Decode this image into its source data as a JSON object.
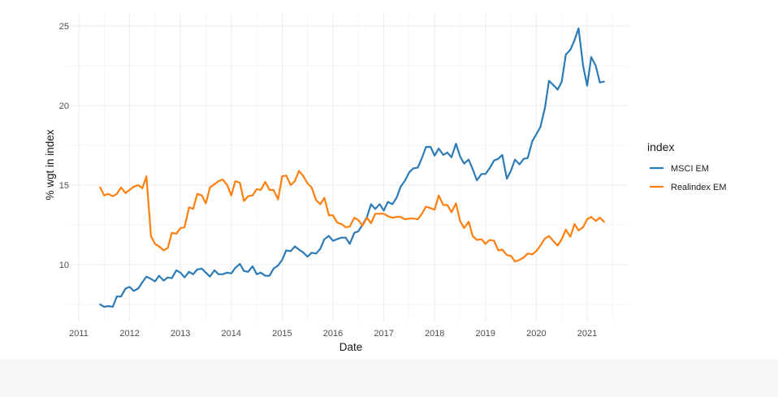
{
  "chart_data": {
    "type": "line",
    "title": "",
    "xlabel": "Date",
    "ylabel": "% wgt in index",
    "xlim": [
      2011.0,
      2021.5
    ],
    "ylim": [
      6.5,
      25.8
    ],
    "x_ticks": [
      2011,
      2012,
      2013,
      2014,
      2015,
      2016,
      2017,
      2018,
      2019,
      2020,
      2021
    ],
    "x_tick_labels": [
      "2011",
      "2012",
      "2013",
      "2014",
      "2015",
      "2016",
      "2017",
      "2018",
      "2019",
      "2020",
      "2021"
    ],
    "y_ticks": [
      10,
      15,
      20,
      25
    ],
    "y_tick_labels": [
      "10",
      "15",
      "20",
      "25"
    ],
    "grid": true,
    "legend": {
      "title": "index",
      "position": "right"
    },
    "series": [
      {
        "name": "MSCI EM",
        "color": "#2c7bb6",
        "points": [
          [
            2011.42,
            7.5
          ],
          [
            2011.5,
            7.35
          ],
          [
            2011.58,
            7.4
          ],
          [
            2011.67,
            7.35
          ],
          [
            2011.75,
            8.0
          ],
          [
            2011.83,
            8.0
          ],
          [
            2011.92,
            8.5
          ],
          [
            2012.0,
            8.6
          ],
          [
            2012.08,
            8.35
          ],
          [
            2012.17,
            8.5
          ],
          [
            2012.25,
            8.9
          ],
          [
            2012.33,
            9.25
          ],
          [
            2012.42,
            9.1
          ],
          [
            2012.5,
            8.95
          ],
          [
            2012.58,
            9.3
          ],
          [
            2012.67,
            9.0
          ],
          [
            2012.75,
            9.2
          ],
          [
            2012.83,
            9.15
          ],
          [
            2012.92,
            9.65
          ],
          [
            2013.0,
            9.5
          ],
          [
            2013.08,
            9.2
          ],
          [
            2013.17,
            9.55
          ],
          [
            2013.25,
            9.4
          ],
          [
            2013.33,
            9.7
          ],
          [
            2013.42,
            9.75
          ],
          [
            2013.5,
            9.5
          ],
          [
            2013.58,
            9.25
          ],
          [
            2013.67,
            9.65
          ],
          [
            2013.75,
            9.4
          ],
          [
            2013.83,
            9.4
          ],
          [
            2013.92,
            9.5
          ],
          [
            2014.0,
            9.45
          ],
          [
            2014.08,
            9.8
          ],
          [
            2014.17,
            10.05
          ],
          [
            2014.25,
            9.6
          ],
          [
            2014.33,
            9.55
          ],
          [
            2014.42,
            9.9
          ],
          [
            2014.5,
            9.4
          ],
          [
            2014.58,
            9.5
          ],
          [
            2014.67,
            9.3
          ],
          [
            2014.75,
            9.3
          ],
          [
            2014.83,
            9.75
          ],
          [
            2014.92,
            9.95
          ],
          [
            2015.0,
            10.3
          ],
          [
            2015.08,
            10.9
          ],
          [
            2015.17,
            10.85
          ],
          [
            2015.25,
            11.15
          ],
          [
            2015.33,
            10.95
          ],
          [
            2015.42,
            10.75
          ],
          [
            2015.5,
            10.5
          ],
          [
            2015.58,
            10.75
          ],
          [
            2015.67,
            10.7
          ],
          [
            2015.75,
            11.0
          ],
          [
            2015.83,
            11.6
          ],
          [
            2015.92,
            11.8
          ],
          [
            2016.0,
            11.5
          ],
          [
            2016.08,
            11.6
          ],
          [
            2016.17,
            11.7
          ],
          [
            2016.25,
            11.7
          ],
          [
            2016.33,
            11.3
          ],
          [
            2016.42,
            12.0
          ],
          [
            2016.5,
            12.1
          ],
          [
            2016.58,
            12.5
          ],
          [
            2016.67,
            13.0
          ],
          [
            2016.75,
            13.8
          ],
          [
            2016.83,
            13.5
          ],
          [
            2016.92,
            13.8
          ],
          [
            2017.0,
            13.4
          ],
          [
            2017.08,
            13.95
          ],
          [
            2017.17,
            13.8
          ],
          [
            2017.25,
            14.2
          ],
          [
            2017.33,
            14.9
          ],
          [
            2017.42,
            15.3
          ],
          [
            2017.5,
            15.8
          ],
          [
            2017.58,
            16.05
          ],
          [
            2017.67,
            16.1
          ],
          [
            2017.75,
            16.7
          ],
          [
            2017.83,
            17.4
          ],
          [
            2017.92,
            17.4
          ],
          [
            2018.0,
            16.85
          ],
          [
            2018.08,
            17.3
          ],
          [
            2018.17,
            16.9
          ],
          [
            2018.25,
            17.05
          ],
          [
            2018.33,
            16.75
          ],
          [
            2018.42,
            17.6
          ],
          [
            2018.5,
            16.8
          ],
          [
            2018.58,
            16.35
          ],
          [
            2018.67,
            16.6
          ],
          [
            2018.75,
            16.0
          ],
          [
            2018.83,
            15.3
          ],
          [
            2018.92,
            15.7
          ],
          [
            2019.0,
            15.7
          ],
          [
            2019.08,
            16.05
          ],
          [
            2019.17,
            16.55
          ],
          [
            2019.25,
            16.65
          ],
          [
            2019.33,
            16.9
          ],
          [
            2019.42,
            15.4
          ],
          [
            2019.5,
            15.9
          ],
          [
            2019.58,
            16.6
          ],
          [
            2019.67,
            16.3
          ],
          [
            2019.75,
            16.65
          ],
          [
            2019.83,
            16.7
          ],
          [
            2019.92,
            17.75
          ],
          [
            2020.0,
            18.2
          ],
          [
            2020.08,
            18.65
          ],
          [
            2020.17,
            19.85
          ],
          [
            2020.25,
            21.55
          ],
          [
            2020.33,
            21.3
          ],
          [
            2020.42,
            21.0
          ],
          [
            2020.5,
            21.5
          ],
          [
            2020.58,
            23.2
          ],
          [
            2020.67,
            23.5
          ],
          [
            2020.75,
            24.1
          ],
          [
            2020.83,
            24.85
          ],
          [
            2020.92,
            22.5
          ],
          [
            2021.0,
            21.25
          ],
          [
            2021.08,
            23.05
          ],
          [
            2021.17,
            22.5
          ],
          [
            2021.25,
            21.45
          ],
          [
            2021.33,
            21.5
          ]
        ]
      },
      {
        "name": "Realindex EM",
        "color": "#ff7f0e",
        "points": [
          [
            2011.42,
            14.85
          ],
          [
            2011.5,
            14.35
          ],
          [
            2011.58,
            14.45
          ],
          [
            2011.67,
            14.3
          ],
          [
            2011.75,
            14.45
          ],
          [
            2011.83,
            14.85
          ],
          [
            2011.92,
            14.5
          ],
          [
            2012.0,
            14.7
          ],
          [
            2012.08,
            14.9
          ],
          [
            2012.17,
            15.0
          ],
          [
            2012.25,
            14.8
          ],
          [
            2012.33,
            15.55
          ],
          [
            2012.42,
            11.8
          ],
          [
            2012.5,
            11.3
          ],
          [
            2012.58,
            11.15
          ],
          [
            2012.67,
            10.9
          ],
          [
            2012.75,
            11.05
          ],
          [
            2012.83,
            12.0
          ],
          [
            2012.92,
            11.95
          ],
          [
            2013.0,
            12.3
          ],
          [
            2013.08,
            12.35
          ],
          [
            2013.17,
            13.6
          ],
          [
            2013.25,
            13.5
          ],
          [
            2013.33,
            14.45
          ],
          [
            2013.42,
            14.35
          ],
          [
            2013.5,
            13.85
          ],
          [
            2013.58,
            14.85
          ],
          [
            2013.67,
            15.05
          ],
          [
            2013.75,
            15.25
          ],
          [
            2013.83,
            15.35
          ],
          [
            2013.92,
            15.0
          ],
          [
            2014.0,
            14.35
          ],
          [
            2014.08,
            15.25
          ],
          [
            2014.17,
            15.15
          ],
          [
            2014.25,
            14.0
          ],
          [
            2014.33,
            14.3
          ],
          [
            2014.42,
            14.35
          ],
          [
            2014.5,
            14.75
          ],
          [
            2014.58,
            14.7
          ],
          [
            2014.67,
            15.2
          ],
          [
            2014.75,
            14.7
          ],
          [
            2014.83,
            14.7
          ],
          [
            2014.92,
            14.1
          ],
          [
            2015.0,
            15.55
          ],
          [
            2015.08,
            15.6
          ],
          [
            2015.17,
            15.0
          ],
          [
            2015.25,
            15.25
          ],
          [
            2015.33,
            15.9
          ],
          [
            2015.42,
            15.55
          ],
          [
            2015.5,
            15.1
          ],
          [
            2015.58,
            14.85
          ],
          [
            2015.67,
            14.05
          ],
          [
            2015.75,
            13.8
          ],
          [
            2015.83,
            14.2
          ],
          [
            2015.92,
            13.1
          ],
          [
            2016.0,
            13.1
          ],
          [
            2016.08,
            12.65
          ],
          [
            2016.17,
            12.55
          ],
          [
            2016.25,
            12.35
          ],
          [
            2016.33,
            12.4
          ],
          [
            2016.42,
            12.95
          ],
          [
            2016.5,
            12.8
          ],
          [
            2016.58,
            12.45
          ],
          [
            2016.67,
            12.95
          ],
          [
            2016.75,
            12.6
          ],
          [
            2016.83,
            13.2
          ],
          [
            2016.92,
            13.2
          ],
          [
            2017.0,
            13.2
          ],
          [
            2017.08,
            13.05
          ],
          [
            2017.17,
            12.95
          ],
          [
            2017.25,
            13.0
          ],
          [
            2017.33,
            13.0
          ],
          [
            2017.42,
            12.85
          ],
          [
            2017.5,
            12.9
          ],
          [
            2017.58,
            12.9
          ],
          [
            2017.67,
            12.85
          ],
          [
            2017.75,
            13.2
          ],
          [
            2017.83,
            13.65
          ],
          [
            2017.92,
            13.55
          ],
          [
            2018.0,
            13.45
          ],
          [
            2018.08,
            14.35
          ],
          [
            2018.17,
            13.75
          ],
          [
            2018.25,
            13.75
          ],
          [
            2018.33,
            13.3
          ],
          [
            2018.42,
            13.85
          ],
          [
            2018.5,
            12.75
          ],
          [
            2018.58,
            12.3
          ],
          [
            2018.67,
            12.7
          ],
          [
            2018.75,
            11.8
          ],
          [
            2018.83,
            11.55
          ],
          [
            2018.92,
            11.6
          ],
          [
            2019.0,
            11.3
          ],
          [
            2019.08,
            11.55
          ],
          [
            2019.17,
            11.5
          ],
          [
            2019.25,
            10.9
          ],
          [
            2019.33,
            10.95
          ],
          [
            2019.42,
            10.6
          ],
          [
            2019.5,
            10.55
          ],
          [
            2019.58,
            10.2
          ],
          [
            2019.67,
            10.3
          ],
          [
            2019.75,
            10.45
          ],
          [
            2019.83,
            10.7
          ],
          [
            2019.92,
            10.65
          ],
          [
            2020.0,
            10.85
          ],
          [
            2020.08,
            11.2
          ],
          [
            2020.17,
            11.65
          ],
          [
            2020.25,
            11.8
          ],
          [
            2020.33,
            11.5
          ],
          [
            2020.42,
            11.2
          ],
          [
            2020.5,
            11.6
          ],
          [
            2020.58,
            12.2
          ],
          [
            2020.67,
            11.75
          ],
          [
            2020.75,
            12.55
          ],
          [
            2020.83,
            12.15
          ],
          [
            2020.92,
            12.35
          ],
          [
            2021.0,
            12.85
          ],
          [
            2021.08,
            13.0
          ],
          [
            2021.17,
            12.75
          ],
          [
            2021.25,
            12.95
          ],
          [
            2021.33,
            12.7
          ]
        ]
      }
    ]
  }
}
